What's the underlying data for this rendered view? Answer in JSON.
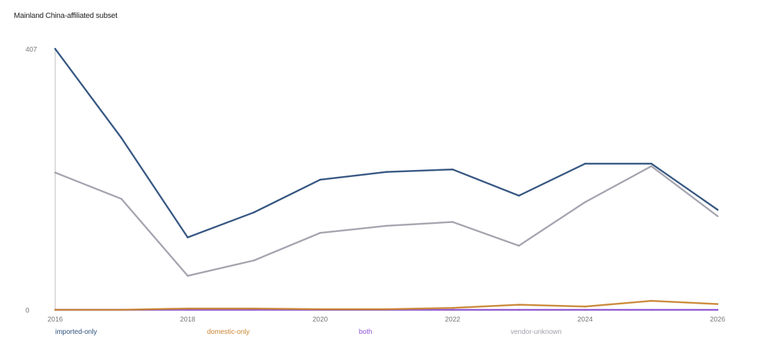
{
  "chart_data": {
    "type": "line",
    "title": "Mainland China-affiliated subset",
    "x": [
      2016,
      2017,
      2018,
      2019,
      2020,
      2021,
      2022,
      2023,
      2024,
      2025,
      2026
    ],
    "x_tick_labels": [
      "2016",
      "2018",
      "2020",
      "2022",
      "2024",
      "2026"
    ],
    "y_tick_labels": [
      "0",
      "407"
    ],
    "ylim": [
      0,
      407
    ],
    "grid": false,
    "legend_position": "bottom",
    "series": [
      {
        "name": "imported-only",
        "color": "#2d4f7c",
        "values": [
          407,
          268,
          113,
          152,
          203,
          215,
          219,
          178,
          228,
          228,
          156
        ]
      },
      {
        "name": "domestic-only",
        "color": "#c98430",
        "values": [
          0,
          0,
          2,
          2,
          1,
          1,
          3,
          8,
          5,
          14,
          9
        ]
      },
      {
        "name": "both",
        "color": "#8e52d4",
        "values": [
          0,
          0,
          0,
          0,
          0,
          0,
          0,
          0,
          0,
          0,
          0
        ]
      },
      {
        "name": "vendor-unknown",
        "color": "#a0a0ac",
        "values": [
          214,
          173,
          53,
          77,
          120,
          131,
          137,
          100,
          168,
          224,
          146
        ]
      }
    ]
  }
}
